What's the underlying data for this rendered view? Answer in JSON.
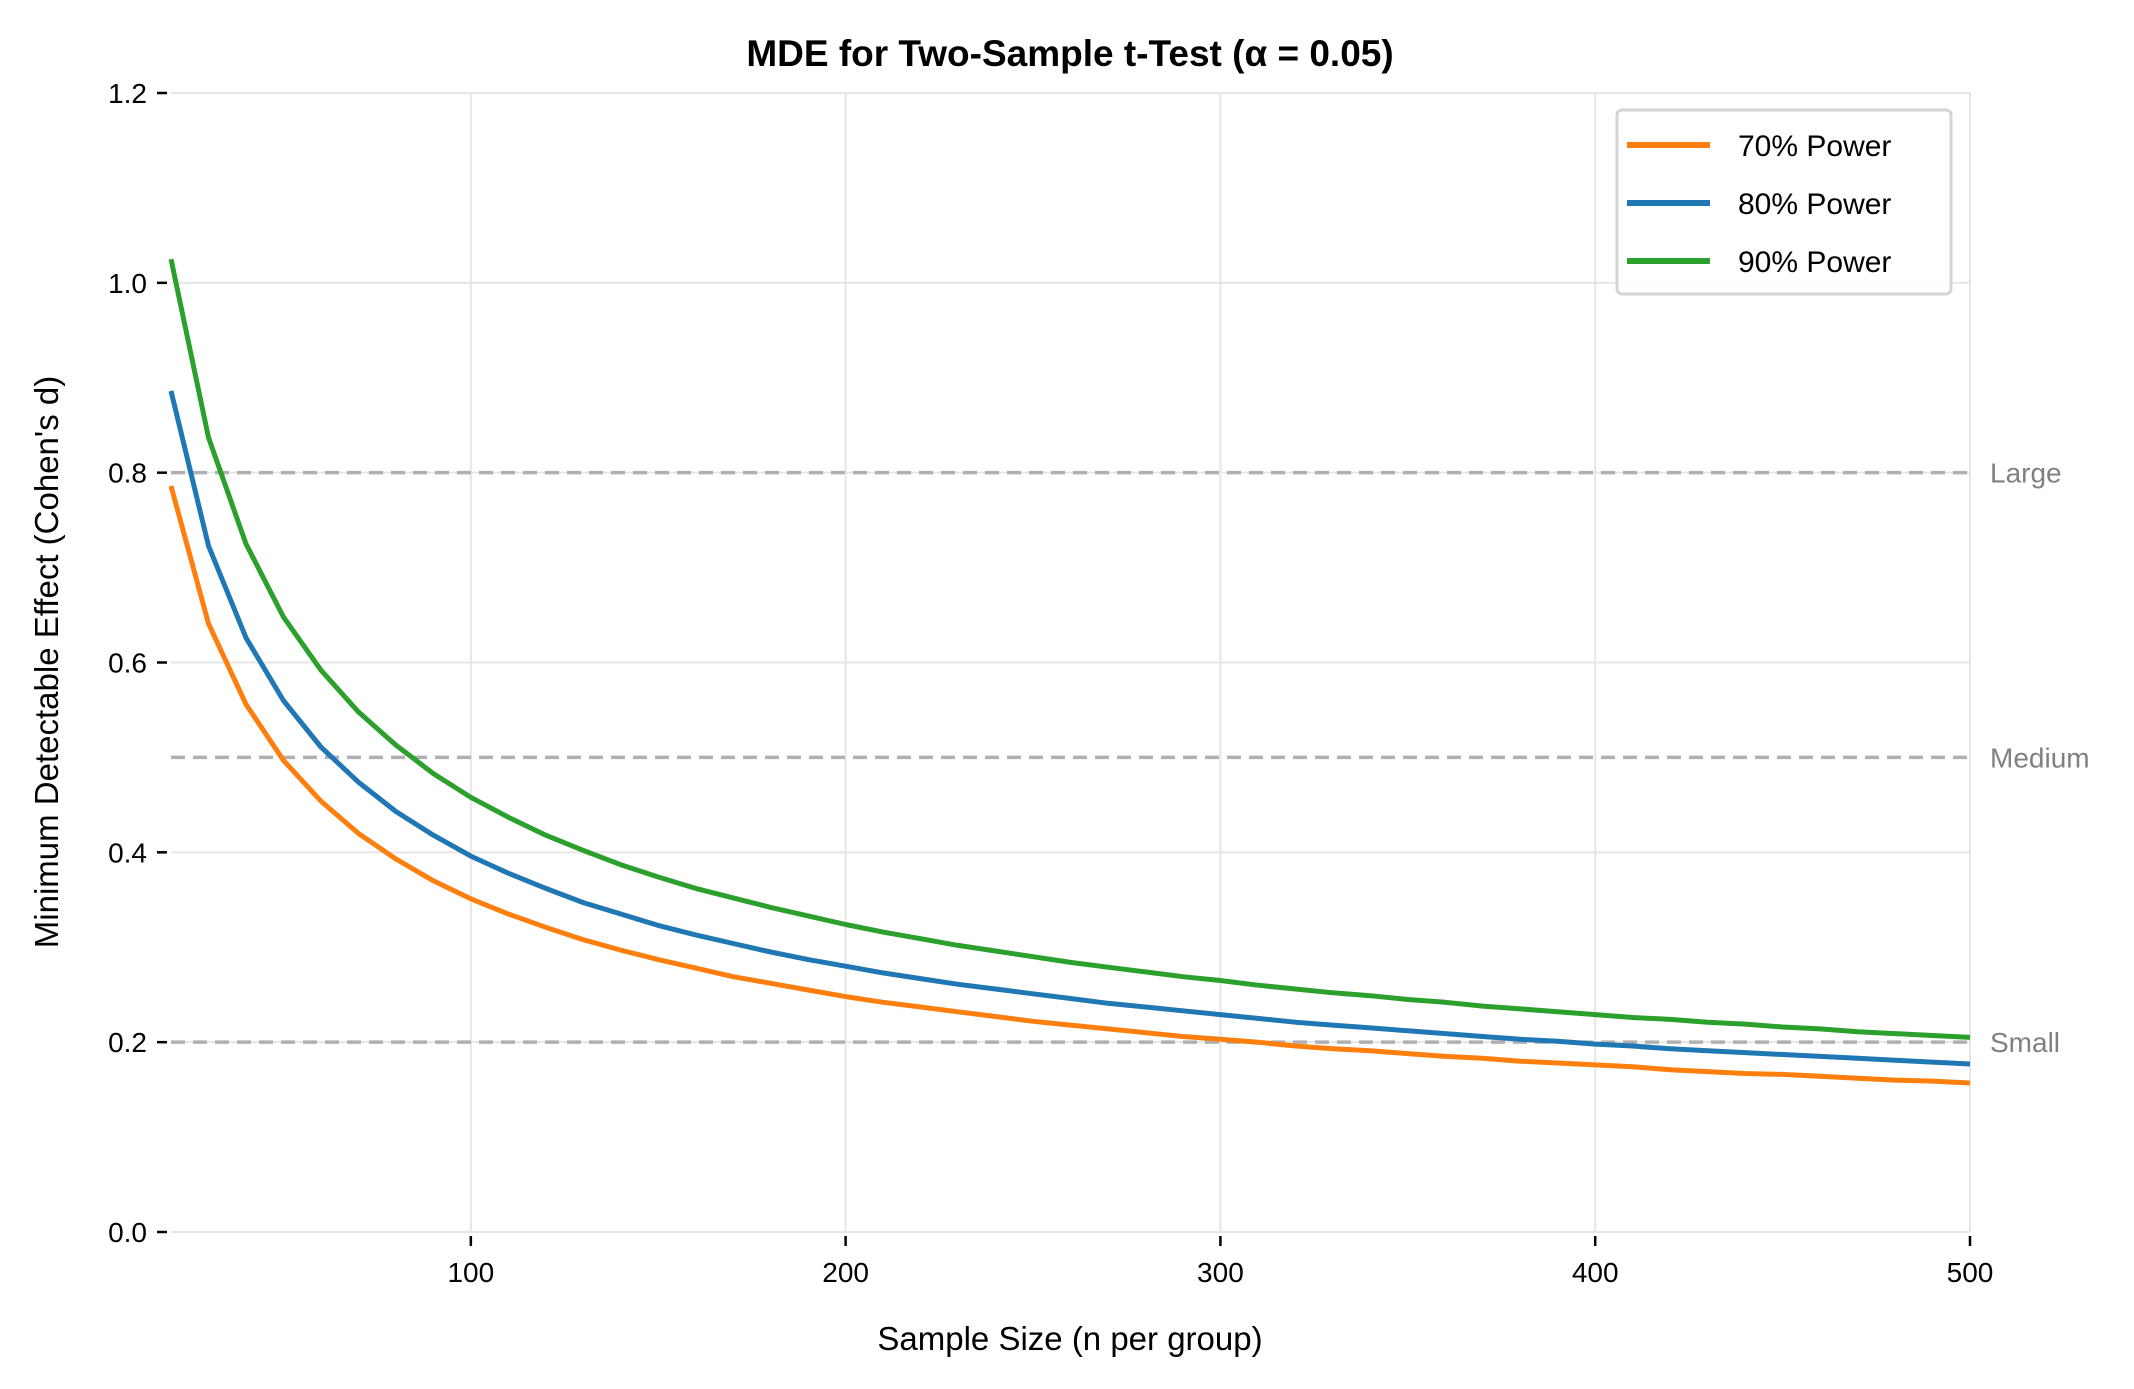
{
  "chart_data": {
    "type": "line",
    "title": "MDE for Two-Sample t-Test (α = 0.05)",
    "xlabel": "Sample Size (n per group)",
    "ylabel": "Minimum Detectable Effect (Cohen's d)",
    "xlim": [
      20,
      500
    ],
    "ylim": [
      0,
      1.2
    ],
    "xticks": [
      100,
      200,
      300,
      400,
      500
    ],
    "xtick_labels": [
      "100",
      "200",
      "300",
      "400",
      "500"
    ],
    "yticks": [
      0,
      0.2,
      0.4,
      0.6,
      0.8,
      1.0,
      1.2
    ],
    "ytick_labels": [
      "0.0",
      "0.2",
      "0.4",
      "0.6",
      "0.8",
      "1.0",
      "1.2"
    ],
    "grid": true,
    "legend_position": "top-right",
    "x": [
      20,
      30,
      40,
      50,
      60,
      70,
      80,
      90,
      100,
      110,
      120,
      130,
      140,
      150,
      160,
      170,
      180,
      190,
      200,
      210,
      220,
      230,
      240,
      250,
      260,
      270,
      280,
      290,
      300,
      310,
      320,
      330,
      340,
      350,
      360,
      370,
      380,
      390,
      400,
      410,
      420,
      430,
      440,
      450,
      460,
      470,
      480,
      490,
      500
    ],
    "series": [
      {
        "name": "70% Power",
        "color": "#ff7f0e",
        "values": [
          0.786,
          0.641,
          0.556,
          0.497,
          0.454,
          0.42,
          0.393,
          0.37,
          0.351,
          0.335,
          0.321,
          0.308,
          0.297,
          0.287,
          0.278,
          0.269,
          0.262,
          0.255,
          0.248,
          0.242,
          0.237,
          0.232,
          0.227,
          0.222,
          0.218,
          0.214,
          0.21,
          0.206,
          0.203,
          0.2,
          0.196,
          0.193,
          0.191,
          0.188,
          0.185,
          0.183,
          0.18,
          0.178,
          0.176,
          0.174,
          0.171,
          0.169,
          0.167,
          0.166,
          0.164,
          0.162,
          0.16,
          0.159,
          0.157
        ]
      },
      {
        "name": "80% Power",
        "color": "#1f77b4",
        "values": [
          0.886,
          0.723,
          0.626,
          0.56,
          0.511,
          0.474,
          0.443,
          0.418,
          0.396,
          0.378,
          0.362,
          0.347,
          0.335,
          0.323,
          0.313,
          0.304,
          0.295,
          0.287,
          0.28,
          0.273,
          0.267,
          0.261,
          0.256,
          0.251,
          0.246,
          0.241,
          0.237,
          0.233,
          0.229,
          0.225,
          0.221,
          0.218,
          0.215,
          0.212,
          0.209,
          0.206,
          0.203,
          0.201,
          0.198,
          0.196,
          0.193,
          0.191,
          0.189,
          0.187,
          0.185,
          0.183,
          0.181,
          0.179,
          0.177
        ]
      },
      {
        "name": "90% Power",
        "color": "#2ca02c",
        "values": [
          1.025,
          0.837,
          0.725,
          0.648,
          0.592,
          0.548,
          0.513,
          0.483,
          0.458,
          0.437,
          0.418,
          0.402,
          0.387,
          0.374,
          0.362,
          0.352,
          0.342,
          0.333,
          0.324,
          0.316,
          0.309,
          0.302,
          0.296,
          0.29,
          0.284,
          0.279,
          0.274,
          0.269,
          0.265,
          0.26,
          0.256,
          0.252,
          0.249,
          0.245,
          0.242,
          0.238,
          0.235,
          0.232,
          0.229,
          0.226,
          0.224,
          0.221,
          0.219,
          0.216,
          0.214,
          0.211,
          0.209,
          0.207,
          0.205
        ]
      }
    ],
    "reference_lines": [
      {
        "y": 0.8,
        "label": "Large"
      },
      {
        "y": 0.5,
        "label": "Medium"
      },
      {
        "y": 0.2,
        "label": "Small"
      }
    ]
  }
}
